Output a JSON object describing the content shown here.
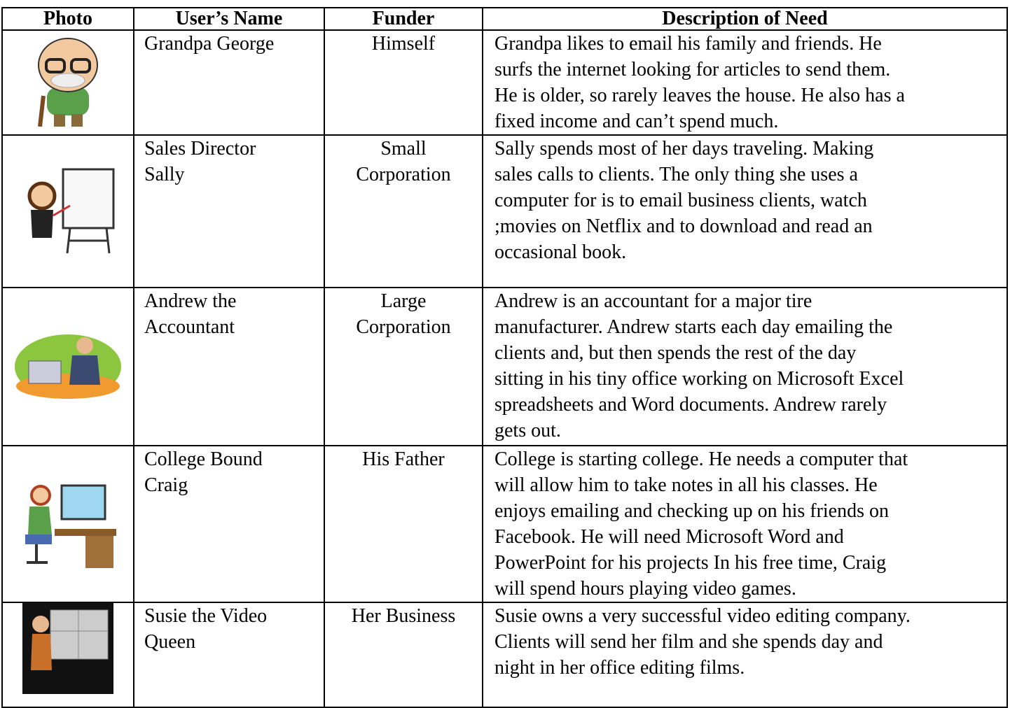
{
  "table": {
    "header": [
      "Photo",
      "User’s Name",
      "Funder",
      "Description of Need"
    ],
    "rows": [
      {
        "name": [
          "Grandpa George"
        ],
        "funder": [
          "Himself"
        ],
        "description": [
          "Grandpa likes to email his family and friends. He",
          "surfs the internet looking for articles to send them.",
          "He is older, so rarely leaves the house. He also has a",
          "fixed income and can’t spend much."
        ]
      },
      {
        "name": [
          "Sales Director",
          "Sally"
        ],
        "funder": [
          "Small",
          "Corporation"
        ],
        "description": [
          "Sally spends most of her days traveling. Making",
          "sales calls to clients. The only thing she uses a",
          "computer for is to email business clients, watch",
          ";movies on Netflix and to download and read an",
          "occasional book."
        ]
      },
      {
        "name": [
          "Andrew the",
          "Accountant"
        ],
        "funder": [
          "Large",
          "Corporation"
        ],
        "description": [
          "Andrew is an accountant for a major tire",
          "manufacturer. Andrew starts each day  emailing the",
          "clients and, but then spends the rest of the day",
          "sitting in his tiny office working on Microsoft Excel",
          "spreadsheets and Word documents. Andrew rarely",
          "gets out."
        ]
      },
      {
        "name": [
          "College Bound",
          "Craig"
        ],
        "funder": [
          "His Father"
        ],
        "description": [
          "College is starting college. He needs a computer that",
          "will allow him to take notes in all his classes. He",
          "enjoys emailing and checking up on his friends on",
          "Facebook. He will need Microsoft Word and",
          "PowerPoint for his projects In his free time, Craig",
          "will spend hours playing video games."
        ]
      },
      {
        "name": [
          "Susie the Video",
          "Queen"
        ],
        "funder": [
          "Her Business"
        ],
        "description": [
          "Susie owns a very successful video editing company.",
          "Clients will send her film and she spends day and",
          "night in her office editing films."
        ]
      }
    ]
  }
}
